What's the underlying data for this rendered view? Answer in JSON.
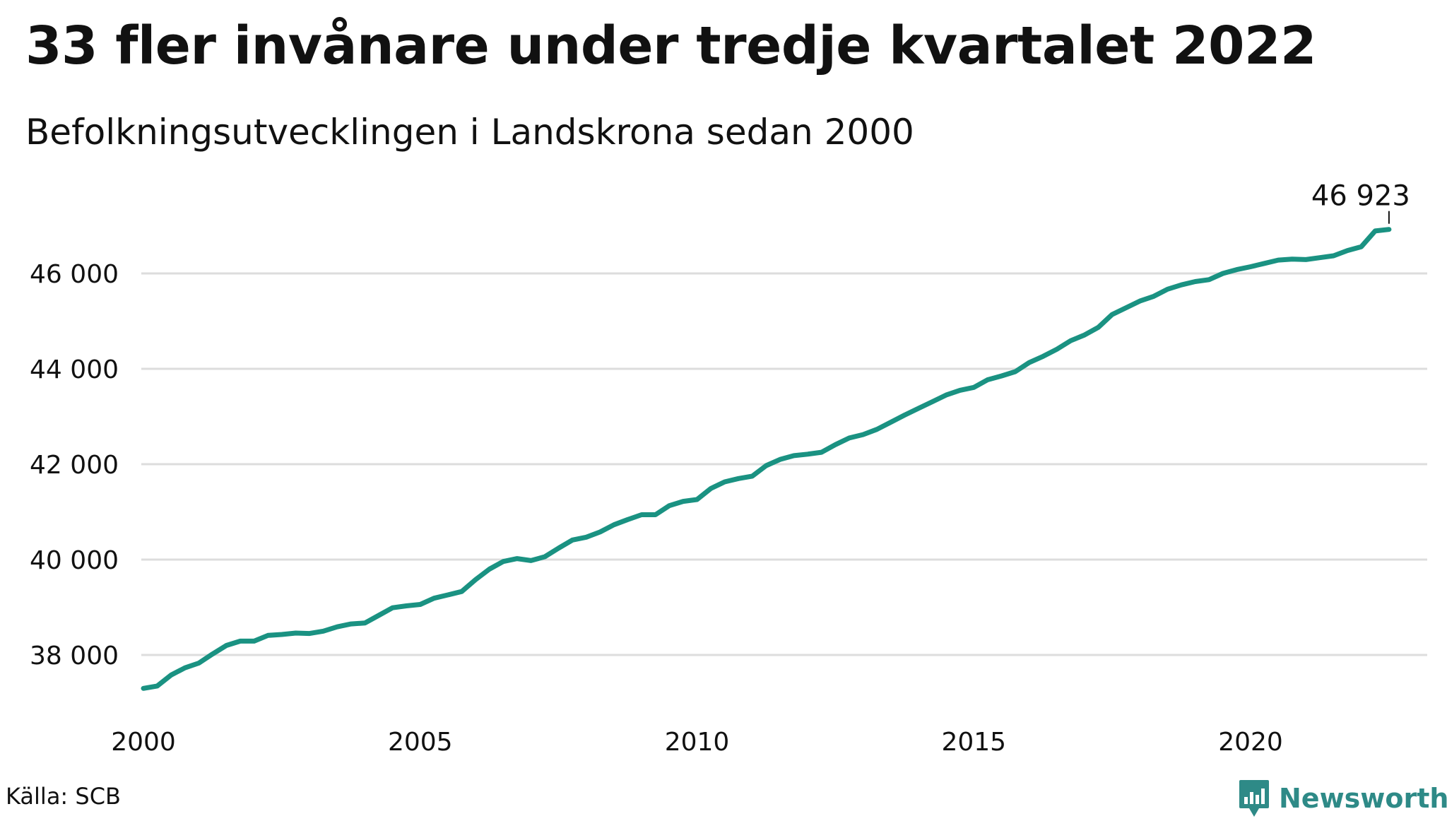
{
  "title": "33 fler invånare under tredje kvartalet 2022",
  "subtitle": "Befolkningsutvecklingen i Landskrona sedan 2000",
  "source": "Källa: SCB",
  "brand": "Newsworthy",
  "colors": {
    "line": "#1a9282",
    "grid": "#dddddd",
    "brand": "#2e8a87"
  },
  "chart_data": {
    "type": "line",
    "title": "33 fler invånare under tredje kvartalet 2022",
    "subtitle": "Befolkningsutvecklingen i Landskrona sedan 2000",
    "xlabel": "",
    "ylabel": "",
    "x_range": [
      2000,
      2023.75
    ],
    "ylim": [
      37200,
      47600
    ],
    "y_ticks": [
      38000,
      40000,
      42000,
      44000,
      46000
    ],
    "y_tick_labels": [
      "38 000",
      "40 000",
      "42 000",
      "44 000",
      "46 000"
    ],
    "x_ticks": [
      2000,
      2005,
      2010,
      2015,
      2020
    ],
    "x_tick_labels": [
      "2000",
      "2005",
      "2010",
      "2015",
      "2020"
    ],
    "grid": "horizontal",
    "end_label": "46 923",
    "series": [
      {
        "name": "",
        "x": [
          2000.0,
          2000.25,
          2000.5,
          2000.75,
          2001.0,
          2001.25,
          2001.5,
          2001.75,
          2002.0,
          2002.25,
          2002.5,
          2002.75,
          2003.0,
          2003.25,
          2003.5,
          2003.75,
          2004.0,
          2004.25,
          2004.5,
          2004.75,
          2005.0,
          2005.25,
          2005.5,
          2005.75,
          2006.0,
          2006.25,
          2006.5,
          2006.75,
          2007.0,
          2007.25,
          2007.5,
          2007.75,
          2008.0,
          2008.25,
          2008.5,
          2008.75,
          2009.0,
          2009.25,
          2009.5,
          2009.75,
          2010.0,
          2010.25,
          2010.5,
          2010.75,
          2011.0,
          2011.25,
          2011.5,
          2011.75,
          2012.0,
          2012.25,
          2012.5,
          2012.75,
          2013.0,
          2013.25,
          2013.5,
          2013.75,
          2014.0,
          2014.25,
          2014.5,
          2014.75,
          2015.0,
          2015.25,
          2015.5,
          2015.75,
          2016.0,
          2016.25,
          2016.5,
          2016.75,
          2017.0,
          2017.25,
          2017.5,
          2017.75,
          2018.0,
          2018.25,
          2018.5,
          2018.75,
          2019.0,
          2019.25,
          2019.5,
          2019.75,
          2020.0,
          2020.25,
          2020.5,
          2020.75,
          2021.0,
          2021.25,
          2021.5,
          2021.75,
          2022.0,
          2022.25,
          2022.5
        ],
        "y": [
          37300,
          37350,
          37580,
          37730,
          37830,
          38020,
          38200,
          38290,
          38290,
          38410,
          38430,
          38460,
          38450,
          38500,
          38590,
          38650,
          38670,
          38830,
          38990,
          39030,
          39060,
          39190,
          39260,
          39330,
          39580,
          39800,
          39960,
          40020,
          39980,
          40060,
          40240,
          40410,
          40470,
          40580,
          40730,
          40840,
          40940,
          40940,
          41130,
          41220,
          41260,
          41490,
          41630,
          41700,
          41750,
          41970,
          42100,
          42180,
          42210,
          42250,
          42410,
          42550,
          42620,
          42730,
          42880,
          43030,
          43170,
          43310,
          43450,
          43550,
          43610,
          43770,
          43850,
          43940,
          44130,
          44260,
          44410,
          44590,
          44710,
          44870,
          45140,
          45280,
          45420,
          45520,
          45670,
          45760,
          45830,
          45870,
          46000,
          46080,
          46140,
          46210,
          46280,
          46300,
          46290,
          46330,
          46370,
          46480,
          46560,
          46890,
          46923
        ]
      }
    ]
  }
}
